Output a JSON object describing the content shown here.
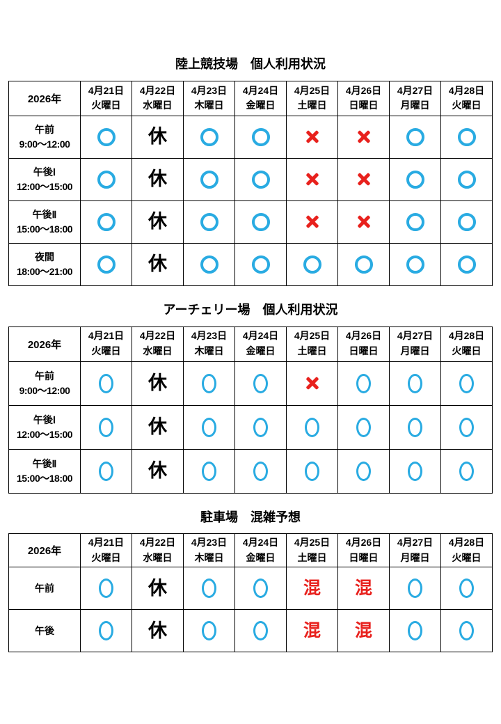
{
  "colors": {
    "circle_blue": "#29abe2",
    "cross_red": "#e8211d",
    "crowded_red": "#e8211d",
    "border_black": "#000000",
    "background": "#ffffff"
  },
  "cell_symbols": {
    "o": {
      "name": "available-circle-icon",
      "text": ""
    },
    "x": {
      "name": "unavailable-cross-icon",
      "text": ""
    },
    "kyu": {
      "name": "closed-label",
      "text": "休"
    },
    "kon": {
      "name": "crowded-label",
      "text": "混"
    }
  },
  "tables": [
    {
      "id": "athletics-stadium",
      "title": "陸上競技場　個人利用状況",
      "corner_label": "2026年",
      "circle_style": "round",
      "columns": [
        {
          "date": "4月21日",
          "weekday": "火曜日"
        },
        {
          "date": "4月22日",
          "weekday": "水曜日"
        },
        {
          "date": "4月23日",
          "weekday": "木曜日"
        },
        {
          "date": "4月24日",
          "weekday": "金曜日"
        },
        {
          "date": "4月25日",
          "weekday": "土曜日"
        },
        {
          "date": "4月26日",
          "weekday": "日曜日"
        },
        {
          "date": "4月27日",
          "weekday": "月曜日"
        },
        {
          "date": "4月28日",
          "weekday": "火曜日"
        }
      ],
      "rows": [
        {
          "label": "午前",
          "time": "9:00～12:00",
          "cells": [
            "o",
            "kyu",
            "o",
            "o",
            "x",
            "x",
            "o",
            "o"
          ]
        },
        {
          "label": "午後Ⅰ",
          "time": "12:00～15:00",
          "cells": [
            "o",
            "kyu",
            "o",
            "o",
            "x",
            "x",
            "o",
            "o"
          ]
        },
        {
          "label": "午後Ⅱ",
          "time": "15:00～18:00",
          "cells": [
            "o",
            "kyu",
            "o",
            "o",
            "x",
            "x",
            "o",
            "o"
          ]
        },
        {
          "label": "夜間",
          "time": "18:00～21:00",
          "cells": [
            "o",
            "kyu",
            "o",
            "o",
            "o",
            "o",
            "o",
            "o"
          ]
        }
      ]
    },
    {
      "id": "archery-range",
      "title": "アーチェリー場　個人利用状況",
      "corner_label": "2026年",
      "circle_style": "oval",
      "columns": [
        {
          "date": "4月21日",
          "weekday": "火曜日"
        },
        {
          "date": "4月22日",
          "weekday": "水曜日"
        },
        {
          "date": "4月23日",
          "weekday": "木曜日"
        },
        {
          "date": "4月24日",
          "weekday": "金曜日"
        },
        {
          "date": "4月25日",
          "weekday": "土曜日"
        },
        {
          "date": "4月26日",
          "weekday": "日曜日"
        },
        {
          "date": "4月27日",
          "weekday": "月曜日"
        },
        {
          "date": "4月28日",
          "weekday": "火曜日"
        }
      ],
      "rows": [
        {
          "label": "午前",
          "time": "9:00～12:00",
          "cells": [
            "o",
            "kyu",
            "o",
            "o",
            "x",
            "o",
            "o",
            "o"
          ]
        },
        {
          "label": "午後Ⅰ",
          "time": "12:00～15:00",
          "cells": [
            "o",
            "kyu",
            "o",
            "o",
            "o",
            "o",
            "o",
            "o"
          ]
        },
        {
          "label": "午後Ⅱ",
          "time": "15:00～18:00",
          "cells": [
            "o",
            "kyu",
            "o",
            "o",
            "o",
            "o",
            "o",
            "o"
          ]
        }
      ]
    },
    {
      "id": "parking-lot",
      "title": "駐車場　混雑予想",
      "corner_label": "2026年",
      "circle_style": "oval",
      "columns": [
        {
          "date": "4月21日",
          "weekday": "火曜日"
        },
        {
          "date": "4月22日",
          "weekday": "水曜日"
        },
        {
          "date": "4月23日",
          "weekday": "木曜日"
        },
        {
          "date": "4月24日",
          "weekday": "金曜日"
        },
        {
          "date": "4月25日",
          "weekday": "土曜日"
        },
        {
          "date": "4月26日",
          "weekday": "日曜日"
        },
        {
          "date": "4月27日",
          "weekday": "月曜日"
        },
        {
          "date": "4月28日",
          "weekday": "火曜日"
        }
      ],
      "rows": [
        {
          "label": "午前",
          "time": "",
          "cells": [
            "o",
            "kyu",
            "o",
            "o",
            "kon",
            "kon",
            "o",
            "o"
          ]
        },
        {
          "label": "午後",
          "time": "",
          "cells": [
            "o",
            "kyu",
            "o",
            "o",
            "kon",
            "kon",
            "o",
            "o"
          ]
        }
      ]
    }
  ]
}
